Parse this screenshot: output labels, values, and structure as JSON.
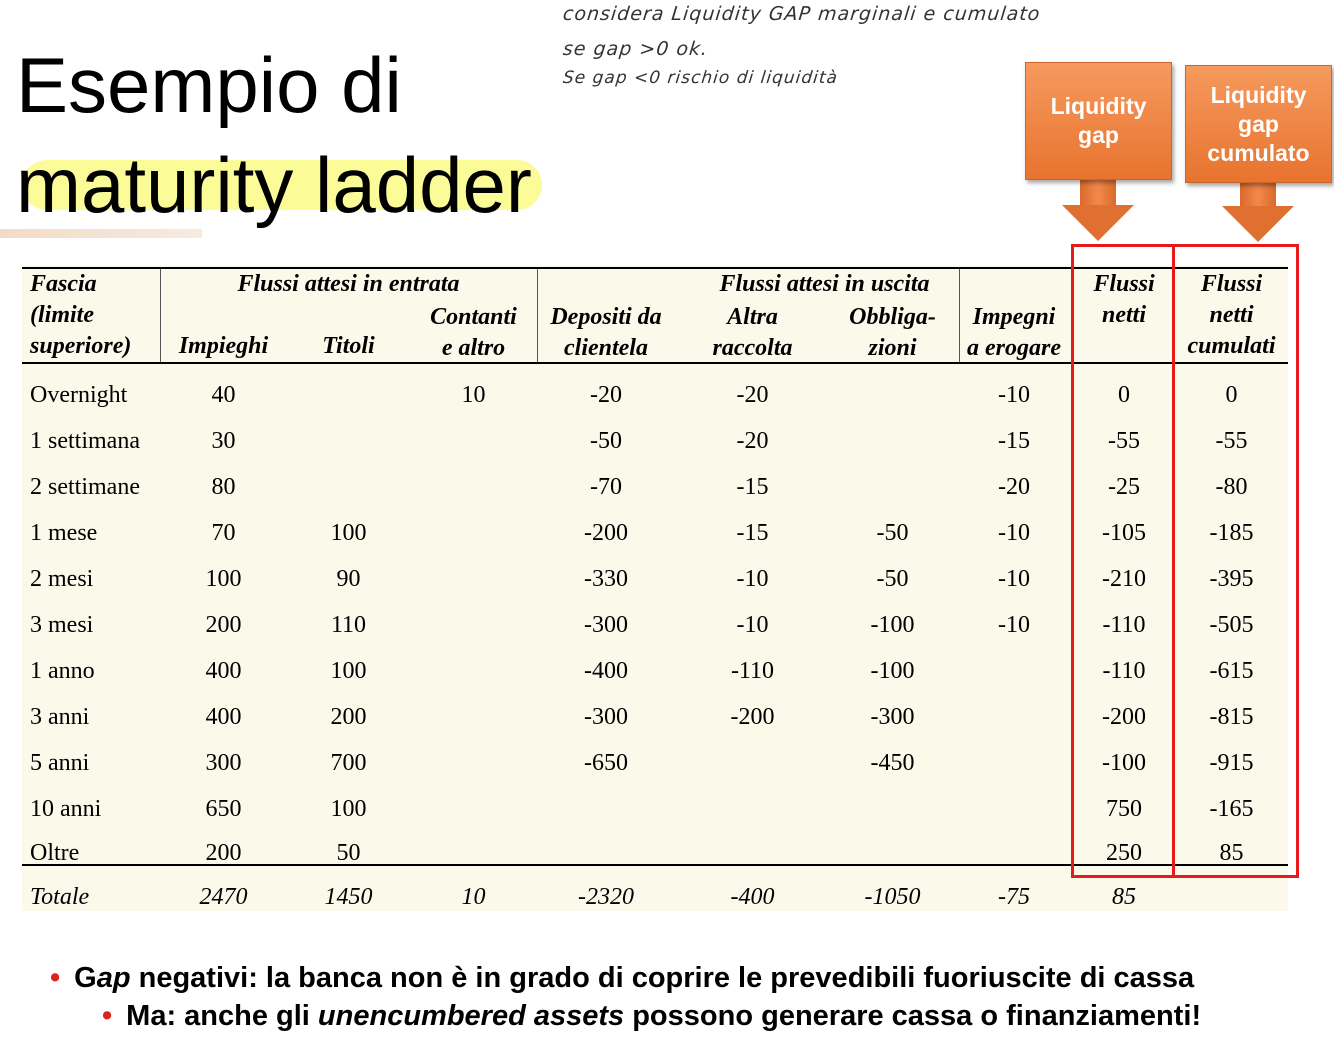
{
  "title": {
    "line1": "Esempio di",
    "line2": "maturity ladder"
  },
  "handwritten_notes": [
    "considera Liquidity GAP marginali e cumulato",
    "se gap >0 ok.",
    "Se gap <0 rischio di liquidità"
  ],
  "callouts": [
    {
      "label": "Liquidity gap"
    },
    {
      "label": "Liquidity gap cumulato"
    }
  ],
  "colors": {
    "callout": "#ee7d3b",
    "highlight": "#fafa86",
    "red_box": "#e51a1a",
    "table_bg": "#fbf9ea",
    "bullet": "#e0201c"
  },
  "table": {
    "header": {
      "fascia": [
        "Fascia",
        "(limite",
        "superiore)"
      ],
      "entrata_group": "Flussi attesi in entrata",
      "uscita_group": "Flussi attesi in uscita",
      "impieghi": "Impieghi",
      "titoli": "Titoli",
      "contanti": [
        "Contanti",
        "e altro"
      ],
      "depositi": [
        "Depositi da",
        "clientela"
      ],
      "altra": [
        "Altra",
        "raccolta"
      ],
      "obbligazioni": [
        "Obbliga-",
        "zioni"
      ],
      "impegni": [
        "Impegni",
        "a erogare"
      ],
      "netti": [
        "Flussi",
        "netti"
      ],
      "cumulati": [
        "Flussi",
        "netti",
        "cumulati"
      ]
    },
    "rows": [
      [
        "Overnight",
        "40",
        "",
        "10",
        "-20",
        "-20",
        "",
        "-10",
        "0",
        "0"
      ],
      [
        "1 settimana",
        "30",
        "",
        "",
        "-50",
        "-20",
        "",
        "-15",
        "-55",
        "-55"
      ],
      [
        "2 settimane",
        "80",
        "",
        "",
        "-70",
        "-15",
        "",
        "-20",
        "-25",
        "-80"
      ],
      [
        "1 mese",
        "70",
        "100",
        "",
        "-200",
        "-15",
        "-50",
        "-10",
        "-105",
        "-185"
      ],
      [
        "2 mesi",
        "100",
        "90",
        "",
        "-330",
        "-10",
        "-50",
        "-10",
        "-210",
        "-395"
      ],
      [
        "3 mesi",
        "200",
        "110",
        "",
        "-300",
        "-10",
        "-100",
        "-10",
        "-110",
        "-505"
      ],
      [
        "1 anno",
        "400",
        "100",
        "",
        "-400",
        "-110",
        "-100",
        "",
        "-110",
        "-615"
      ],
      [
        "3 anni",
        "400",
        "200",
        "",
        "-300",
        "-200",
        "-300",
        "",
        "-200",
        "-815"
      ],
      [
        "5 anni",
        "300",
        "700",
        "",
        "-650",
        "",
        "-450",
        "",
        "-100",
        "-915"
      ],
      [
        "10 anni",
        "650",
        "100",
        "",
        "",
        "",
        "",
        "",
        "750",
        "-165"
      ],
      [
        "Oltre",
        "200",
        "50",
        "",
        "",
        "",
        "",
        "",
        "250",
        "85"
      ]
    ],
    "total": [
      "Totale",
      "2470",
      "1450",
      "10",
      "-2320",
      "-400",
      "-1050",
      "-75",
      "85",
      ""
    ]
  },
  "bullets": [
    {
      "prefix": "G",
      "em": "ap",
      "text": " negativi: la banca non è in grado di coprire le prevedibili fuoriuscite di cassa"
    },
    {
      "prefix": "Ma: anche gli ",
      "em": "unencumbered assets",
      "text": " possono generare cassa o finanziamenti!"
    }
  ]
}
